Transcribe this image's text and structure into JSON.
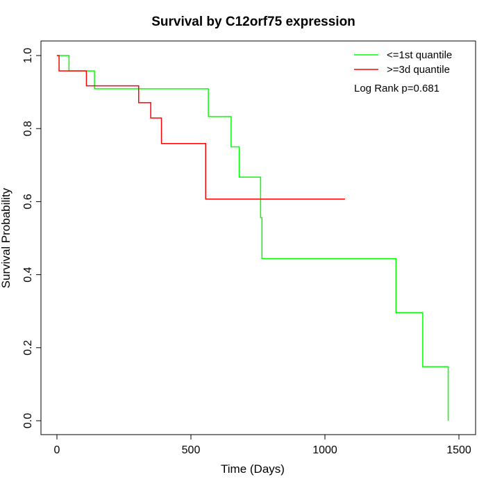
{
  "chart_data": {
    "type": "line",
    "step": true,
    "title": "Survival by C12orf75 expression",
    "xlabel": "Time (Days)",
    "ylabel": "Survival Probability",
    "xlim": [
      0,
      1500
    ],
    "ylim": [
      0,
      1.0
    ],
    "x_ticks": [
      0,
      500,
      1000,
      1500
    ],
    "y_ticks": [
      0.0,
      0.2,
      0.4,
      0.6,
      0.8,
      1.0
    ],
    "x_tick_labels": [
      "0",
      "500",
      "1000",
      "1500"
    ],
    "y_tick_labels": [
      "0.0",
      "0.2",
      "0.4",
      "0.6",
      "0.8",
      "1.0"
    ],
    "grid": false,
    "legend_position": "top-right",
    "annotation": "Log Rank p=0.681",
    "series": [
      {
        "name": "<=1st quantile",
        "color": "#00ff00",
        "x": [
          0,
          45,
          140,
          565,
          650,
          680,
          760,
          765,
          1265,
          1365,
          1460,
          1460
        ],
        "y": [
          1.0,
          0.958,
          0.909,
          0.833,
          0.75,
          0.667,
          0.556,
          0.444,
          0.296,
          0.148,
          0.0,
          0.0
        ]
      },
      {
        "name": ">=3d quantile",
        "color": "#ff0000",
        "x": [
          0,
          8,
          110,
          305,
          350,
          390,
          555,
          1075
        ],
        "y": [
          1.0,
          0.958,
          0.917,
          0.871,
          0.829,
          0.759,
          0.607,
          0.607
        ]
      }
    ]
  }
}
